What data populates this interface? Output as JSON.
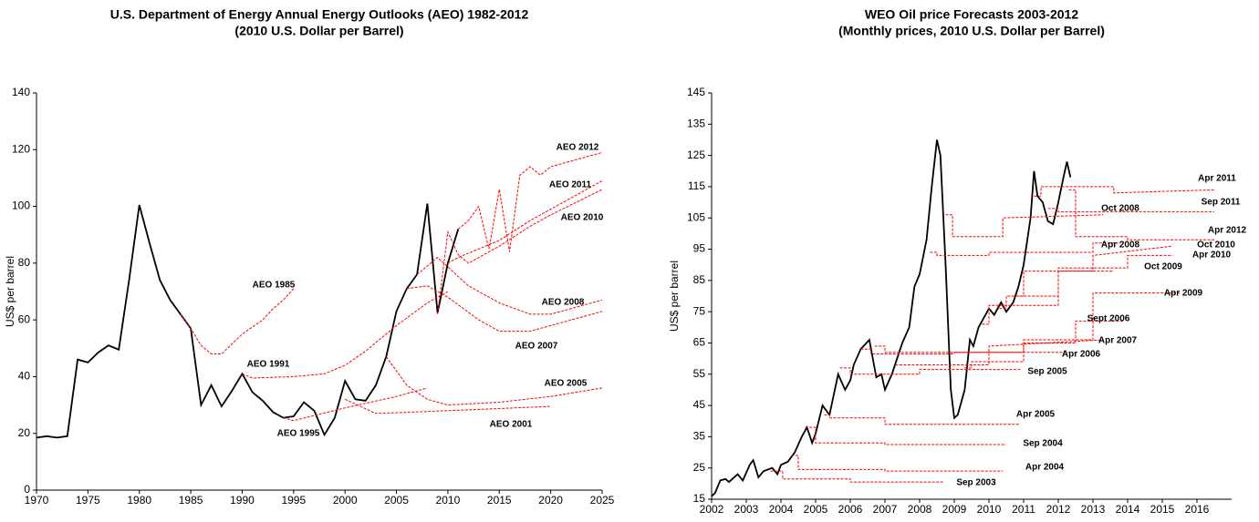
{
  "chart_data": [
    {
      "type": "line",
      "title": "U.S. Department of Energy Annual Energy Outlooks (AEO) 1982-2012",
      "subtitle": "(2010 U.S. Dollar per Barrel)",
      "y_label": "US$ per barrel",
      "xlim": [
        1970,
        2025
      ],
      "xticks": [
        1970,
        1975,
        1980,
        1985,
        1990,
        1995,
        2000,
        2005,
        2010,
        2015,
        2020,
        2025
      ],
      "ylim": [
        0,
        140
      ],
      "yticks": [
        0,
        20,
        40,
        60,
        80,
        100,
        120,
        140
      ],
      "series": [
        {
          "color": "#000000",
          "line_style": "solid",
          "x": [
            1970,
            1971,
            1972,
            1973,
            1974,
            1975,
            1976,
            1977,
            1978,
            1979,
            1980,
            1981,
            1982,
            1983,
            1984,
            1985,
            1986,
            1987,
            1988,
            1989,
            1990,
            1991,
            1992,
            1993,
            1994,
            1995,
            1996,
            1997,
            1998,
            1999,
            2000,
            2001,
            2002,
            2003,
            2004,
            2005,
            2006,
            2007,
            2008,
            2009,
            2010,
            2011
          ],
          "values": [
            18.5,
            19,
            18.5,
            19,
            46,
            45,
            48.5,
            51,
            49.5,
            74,
            100.5,
            87,
            74,
            67,
            62,
            57,
            30,
            37,
            29.5,
            35,
            41,
            34.5,
            31.5,
            27.5,
            25.5,
            26,
            31,
            28,
            19.5,
            25.5,
            38.5,
            32,
            31.5,
            37,
            47,
            63,
            71,
            76,
            101,
            62.5,
            80,
            92
          ]
        },
        {
          "name": "AEO 1985",
          "color": "#ff0000",
          "line_style": "dashed",
          "x": [
            1984,
            1985,
            1986,
            1987,
            1988,
            1990,
            1992,
            1993,
            1994,
            1995
          ],
          "values": [
            62,
            57,
            51,
            48,
            48,
            55,
            60,
            64,
            67,
            71
          ]
        },
        {
          "name": "AEO 1991",
          "color": "#ff0000",
          "line_style": "dashed",
          "x": [
            1990,
            1991,
            1995,
            1998,
            2000,
            2002,
            2005,
            2008,
            2010
          ],
          "values": [
            41,
            39.5,
            40,
            41,
            44,
            49,
            58,
            66,
            70
          ]
        },
        {
          "name": "AEO 1995",
          "color": "#ff0000",
          "line_style": "dashed",
          "x": [
            1994,
            1995,
            2000,
            2005,
            2008
          ],
          "values": [
            25.5,
            24.5,
            29,
            33,
            36
          ]
        },
        {
          "name": "AEO 2001",
          "color": "#ff0000",
          "line_style": "dashed",
          "x": [
            2000,
            2003,
            2010,
            2020
          ],
          "values": [
            32,
            27,
            28,
            29.5
          ]
        },
        {
          "name": "AEO  2005",
          "color": "#ff0000",
          "line_style": "dashed",
          "x": [
            2004,
            2006,
            2008,
            2010,
            2015,
            2020,
            2025
          ],
          "values": [
            47,
            37,
            32,
            30,
            31,
            33,
            36
          ]
        },
        {
          "name": "AEO 2007",
          "color": "#ff0000",
          "line_style": "dashed",
          "x": [
            2006,
            2008,
            2010,
            2013,
            2015,
            2018,
            2020,
            2025
          ],
          "values": [
            71,
            72,
            68,
            60,
            56,
            56,
            58,
            63
          ]
        },
        {
          "name": "AEO 2008",
          "color": "#ff0000",
          "line_style": "dashed",
          "x": [
            2007,
            2009,
            2012,
            2015,
            2018,
            2020,
            2025
          ],
          "values": [
            76,
            82,
            72,
            66,
            62,
            62,
            67
          ]
        },
        {
          "name": "AEO 2010",
          "color": "#ff0000",
          "line_style": "dashed",
          "x": [
            2009,
            2010,
            2011,
            2012,
            2015,
            2018,
            2020,
            2025
          ],
          "values": [
            62,
            91,
            83,
            80,
            86,
            93,
            97,
            106
          ]
        },
        {
          "name": "AEO 2011",
          "color": "#ff0000",
          "line_style": "dashed",
          "x": [
            2010,
            2011,
            2013,
            2015,
            2018,
            2020,
            2025
          ],
          "values": [
            80,
            82,
            85,
            88,
            95,
            99,
            109
          ]
        },
        {
          "name": "AEO 2012",
          "color": "#ff0000",
          "line_style": "dashed",
          "x": [
            2011,
            2012,
            2013,
            2014,
            2015,
            2016,
            2017,
            2018,
            2019,
            2020,
            2025
          ],
          "values": [
            92,
            95,
            100,
            85,
            106,
            84,
            111,
            114,
            111,
            114,
            119
          ]
        }
      ]
    },
    {
      "type": "line",
      "title": "WEO Oil price Forecasts 2003-2012",
      "subtitle": "(Monthly prices, 2010 U.S. Dollar per Barrel)",
      "y_label": "US$ per barrel",
      "xlim": [
        2002,
        2017
      ],
      "xticks": [
        2002,
        2003,
        2004,
        2005,
        2006,
        2007,
        2008,
        2009,
        2010,
        2011,
        2012,
        2013,
        2014,
        2015,
        2016
      ],
      "ylim": [
        15,
        145
      ],
      "yticks": [
        15,
        25,
        35,
        45,
        55,
        65,
        75,
        85,
        95,
        105,
        115,
        125,
        135,
        145
      ],
      "series": [
        {
          "color": "#000000",
          "line_style": "solid",
          "x": [
            2002.0,
            2002.1,
            2002.25,
            2002.4,
            2002.5,
            2002.75,
            2002.9,
            2003.1,
            2003.2,
            2003.35,
            2003.5,
            2003.75,
            2003.9,
            2004.0,
            2004.2,
            2004.4,
            2004.6,
            2004.75,
            2004.9,
            2005.0,
            2005.2,
            2005.4,
            2005.65,
            2005.85,
            2006.0,
            2006.1,
            2006.3,
            2006.55,
            2006.75,
            2006.9,
            2007.0,
            2007.2,
            2007.5,
            2007.7,
            2007.85,
            2008.0,
            2008.2,
            2008.35,
            2008.5,
            2008.6,
            2008.75,
            2008.9,
            2009.0,
            2009.1,
            2009.3,
            2009.45,
            2009.55,
            2009.7,
            2009.85,
            2010.0,
            2010.15,
            2010.35,
            2010.5,
            2010.7,
            2010.85,
            2011.0,
            2011.2,
            2011.3,
            2011.4,
            2011.55,
            2011.7,
            2011.85,
            2012.0,
            2012.15,
            2012.25,
            2012.35
          ],
          "values": [
            16,
            17,
            21,
            21.5,
            20.5,
            23,
            21,
            26,
            27.5,
            22,
            24,
            25,
            23,
            26,
            27,
            30,
            35,
            38,
            33,
            36,
            45,
            42,
            55,
            50,
            53,
            58,
            63,
            66,
            54,
            55,
            50,
            55,
            65,
            70,
            83,
            87,
            98,
            115,
            130,
            125,
            90,
            50,
            41,
            42,
            50,
            66,
            64,
            70,
            73,
            76,
            74,
            78,
            75,
            78,
            83,
            90,
            105,
            120,
            112,
            110,
            104,
            103,
            110,
            118,
            123,
            118
          ]
        },
        {
          "name": "Sep 2003",
          "color": "#ff0000",
          "line_style": "dashed",
          "x": [
            2003.7,
            2004.05,
            2004.05,
            2006,
            2006,
            2008.7
          ],
          "values": [
            24,
            24,
            21.5,
            21.5,
            20.5,
            20.5
          ]
        },
        {
          "name": "Apr 2004",
          "color": "#ff0000",
          "line_style": "dashed",
          "x": [
            2004.3,
            2004.5,
            2004.5,
            2007,
            2007,
            2010.4
          ],
          "values": [
            29,
            29,
            24.5,
            24.5,
            24,
            24
          ]
        },
        {
          "name": "Sep 2004",
          "color": "#ff0000",
          "line_style": "dashed",
          "x": [
            2004.7,
            2005,
            2005,
            2007,
            2007,
            2010.5
          ],
          "values": [
            38,
            38,
            33,
            33,
            32.5,
            32.5
          ]
        },
        {
          "name": "Apr 2005",
          "color": "#ff0000",
          "line_style": "dashed",
          "x": [
            2005.25,
            2005.4,
            2005.4,
            2007,
            2007,
            2010.9
          ],
          "values": [
            42,
            42,
            41,
            41,
            39,
            39
          ]
        },
        {
          "name": "Sep 2005",
          "color": "#ff0000",
          "line_style": "dashed",
          "x": [
            2005.7,
            2006,
            2006,
            2008,
            2008,
            2010.9
          ],
          "values": [
            57,
            57,
            55,
            55,
            56.5,
            56.5
          ]
        },
        {
          "name": "Apr 2006",
          "color": "#ff0000",
          "line_style": "dashed",
          "x": [
            2006.3,
            2006.6,
            2006.6,
            2009,
            2009,
            2012.3
          ],
          "values": [
            63,
            63,
            61.5,
            61.5,
            62,
            62
          ]
        },
        {
          "name": "Sept 2006",
          "color": "#ff0000",
          "line_style": "dashed",
          "x": [
            2006.7,
            2007,
            2007,
            2011,
            2011,
            2012.5,
            2012.5,
            2013.9
          ],
          "values": [
            64,
            64,
            62,
            62,
            65,
            65,
            72,
            72
          ]
        },
        {
          "name": "Apr 2007",
          "color": "#ff0000",
          "line_style": "dashed",
          "x": [
            2007.3,
            2007.5,
            2007.5,
            2010,
            2010,
            2013.3
          ],
          "values": [
            58,
            58,
            58,
            58,
            64,
            66
          ]
        },
        {
          "name": "Apr 2008",
          "color": "#ff0000",
          "line_style": "dashed",
          "x": [
            2008.3,
            2008.5,
            2008.5,
            2010,
            2010,
            2013,
            2013,
            2013.8
          ],
          "values": [
            94,
            94,
            93,
            93,
            94,
            94,
            97,
            97
          ]
        },
        {
          "name": "Oct 2008",
          "color": "#ff0000",
          "line_style": "dashed",
          "x": [
            2008.75,
            2008.95,
            2008.95,
            2010.4,
            2010.4,
            2013.3
          ],
          "values": [
            106,
            106,
            99,
            99,
            105,
            106
          ]
        },
        {
          "name": "Apr 2009",
          "color": "#ff0000",
          "line_style": "dashed",
          "x": [
            2009.3,
            2009.5,
            2009.5,
            2011,
            2011,
            2013,
            2013,
            2015.5
          ],
          "values": [
            57,
            57,
            59,
            59,
            66,
            66,
            81,
            81
          ]
        },
        {
          "name": "Oct 2009",
          "color": "#ff0000",
          "line_style": "dashed",
          "x": [
            2009.8,
            2010,
            2010,
            2012,
            2012,
            2013.6
          ],
          "values": [
            71,
            71,
            77,
            77,
            88,
            88
          ]
        },
        {
          "name": "Apr 2010",
          "color": "#ff0000",
          "line_style": "dashed",
          "x": [
            2010.3,
            2010.5,
            2010.5,
            2012,
            2012,
            2014,
            2014,
            2015.3
          ],
          "values": [
            76,
            76,
            80,
            80,
            89,
            89,
            93,
            93
          ]
        },
        {
          "name": "Oct 2010",
          "color": "#ff0000",
          "line_style": "dashed",
          "x": [
            2010.8,
            2011,
            2011,
            2013,
            2013,
            2015.3
          ],
          "values": [
            80,
            80,
            88,
            88,
            93,
            96
          ]
        },
        {
          "name": "Apr 2011",
          "color": "#ff0000",
          "line_style": "dashed",
          "x": [
            2011.3,
            2011.5,
            2011.5,
            2013.6,
            2013.6,
            2016.5
          ],
          "values": [
            112,
            112,
            115,
            115,
            113,
            114
          ]
        },
        {
          "name": "Sep 2011",
          "color": "#ff0000",
          "line_style": "dashed",
          "x": [
            2011.7,
            2012,
            2012,
            2014,
            2014,
            2016.5
          ],
          "values": [
            108,
            108,
            107,
            107,
            107,
            107
          ]
        },
        {
          "name": "Apr 2012",
          "color": "#ff0000",
          "line_style": "dashed",
          "x": [
            2012.3,
            2012.5,
            2012.5,
            2014,
            2014,
            2016.5
          ],
          "values": [
            114,
            114,
            99,
            99,
            98,
            98
          ]
        }
      ]
    }
  ]
}
